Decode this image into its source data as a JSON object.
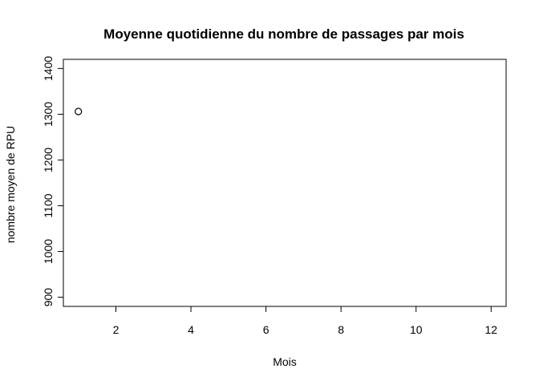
{
  "chart_data": {
    "type": "scatter",
    "title": "Moyenne quotidienne du nombre de passages par mois",
    "xlabel": "Mois",
    "ylabel": "nombre moyen de RPU",
    "xlim": [
      0.6,
      12.4
    ],
    "ylim": [
      880,
      1420
    ],
    "x_ticks": [
      2,
      4,
      6,
      8,
      10,
      12
    ],
    "y_ticks": [
      900,
      1000,
      1100,
      1200,
      1300,
      1400
    ],
    "x": [
      1
    ],
    "y": [
      1306
    ],
    "marker": "open-circle",
    "grid": false
  }
}
